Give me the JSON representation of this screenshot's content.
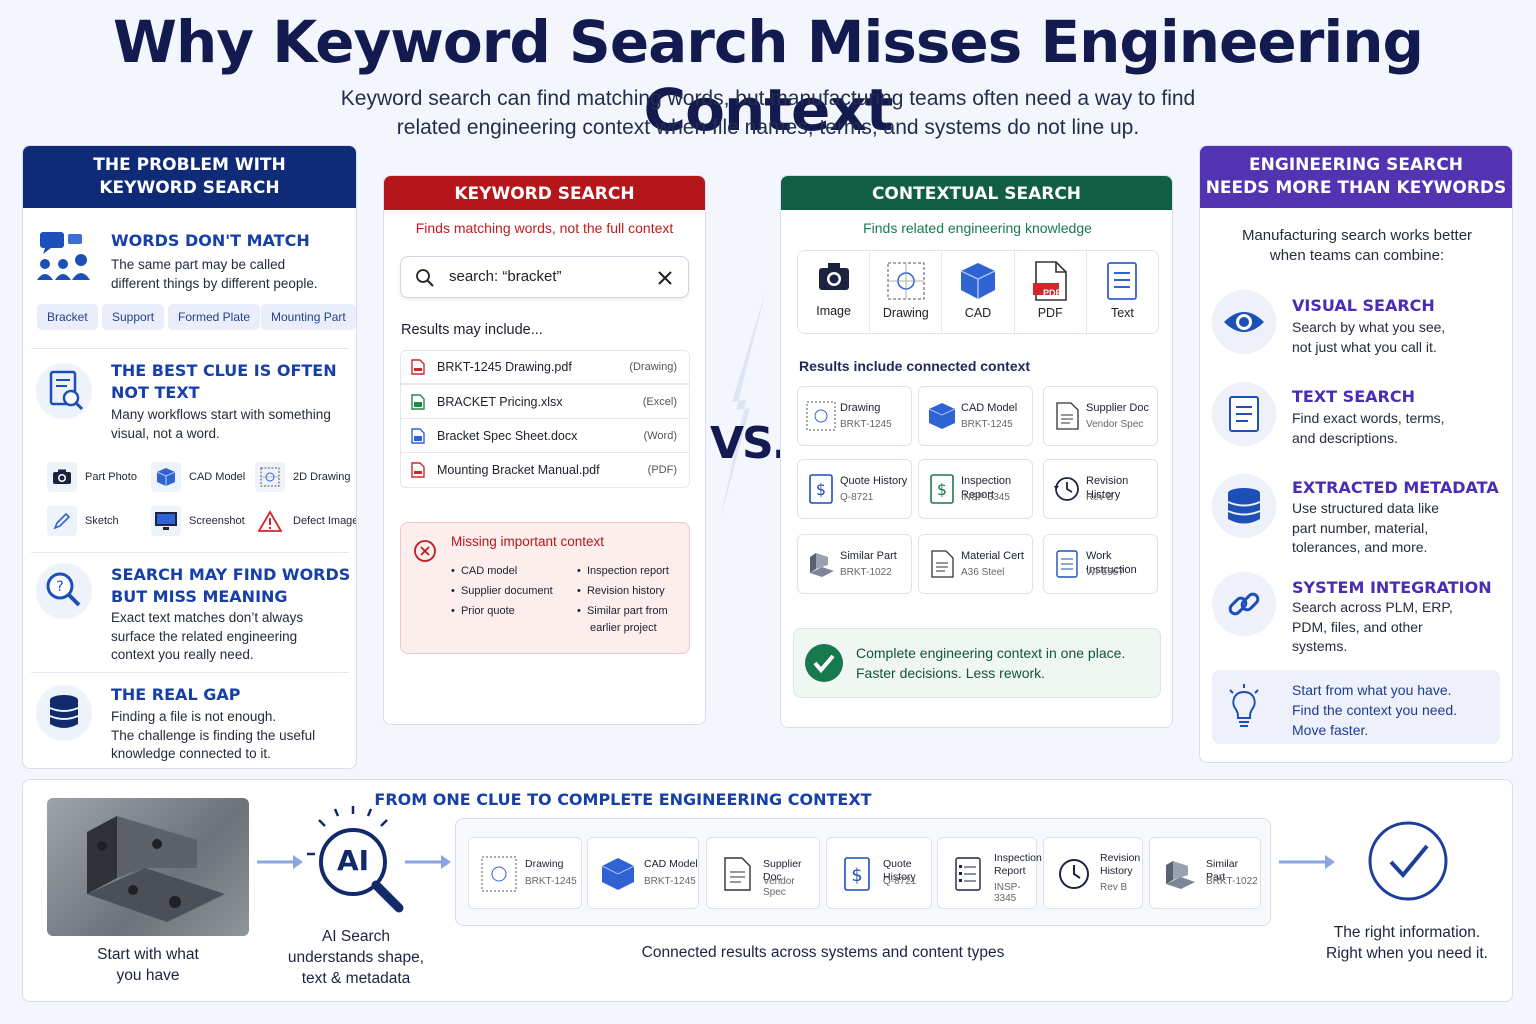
{
  "header": {
    "title": "Why Keyword Search Misses Engineering Context",
    "subtitle_line1": "Keyword search can find matching words, but manufacturing teams often need a way to find",
    "subtitle_line2": "related engineering context when file names, terms, and systems do not line up."
  },
  "left": {
    "head_line1": "THE PROBLEM WITH",
    "head_line2": "KEYWORD SEARCH",
    "s1": {
      "title": "WORDS DON'T MATCH",
      "text1": "The same part may be called",
      "text2": "different things by different people.",
      "tags": [
        "Bracket",
        "Support",
        "Formed Plate",
        "Mounting Part"
      ]
    },
    "s2": {
      "title1": "THE BEST CLUE IS OFTEN",
      "title2": "NOT TEXT",
      "text1": "Many workflows start with something",
      "text2": "visual, not a word.",
      "minis": [
        "Part Photo",
        "CAD Model",
        "2D Drawing",
        "Sketch",
        "Screenshot",
        "Defect Image"
      ]
    },
    "s3": {
      "title1": "SEARCH MAY FIND WORDS",
      "title2": "BUT MISS MEANING",
      "text1": "Exact text matches don’t always",
      "text2": "surface the related engineering",
      "text3": "context you really need."
    },
    "s4": {
      "title": "THE REAL GAP",
      "text1": "Finding a file is not enough.",
      "text2": "The challenge is finding the useful",
      "text3": "knowledge connected to it."
    }
  },
  "keyword": {
    "head": "KEYWORD SEARCH",
    "sub": "Finds matching words, not the full context",
    "search_value": "search: “bracket”",
    "results_label": "Results may include...",
    "files": [
      {
        "name": "BRKT-1245 Drawing.pdf",
        "type": "(Drawing)"
      },
      {
        "name": "BRACKET Pricing.xlsx",
        "type": "(Excel)"
      },
      {
        "name": "Bracket Spec Sheet.docx",
        "type": "(Word)"
      },
      {
        "name": "Mounting Bracket Manual.pdf",
        "type": "(PDF)"
      }
    ],
    "missing_title": "Missing important context",
    "missing_left": [
      "CAD model",
      "Supplier document",
      "Prior quote"
    ],
    "missing_right": [
      "Inspection report",
      "Revision history",
      "Similar part from",
      "earlier project"
    ]
  },
  "vs": "VS.",
  "contextual": {
    "head": "CONTEXTUAL SEARCH",
    "sub": "Finds related engineering knowledge",
    "types": [
      "Image",
      "Drawing",
      "CAD",
      "PDF",
      "Text"
    ],
    "pdf_badge": "PDF",
    "results_label": "Results include connected context",
    "cards": [
      {
        "name": "Drawing",
        "id": "BRKT-1245",
        "icon": "drawing-icon"
      },
      {
        "name": "CAD Model",
        "id": "BRKT-1245",
        "icon": "cad-icon"
      },
      {
        "name": "Supplier Doc",
        "id": "Vendor Spec",
        "icon": "document-icon"
      },
      {
        "name": "Quote History",
        "id": "Q-8721",
        "icon": "dollar-icon"
      },
      {
        "name": "Inspection Report",
        "id": "INSP-3345",
        "icon": "dollar-icon"
      },
      {
        "name": "Revision History",
        "id": "Rev B",
        "icon": "history-icon"
      },
      {
        "name": "Similar Part",
        "id": "BRKT-1022",
        "icon": "bracket-icon"
      },
      {
        "name": "Material Cert",
        "id": "A36 Steel",
        "icon": "document-icon"
      },
      {
        "name": "Work Instruction",
        "id": "WI-5567",
        "icon": "checklist-icon"
      }
    ],
    "ok_line1": "Complete engineering context in one place.",
    "ok_line2": "Faster decisions. Less rework."
  },
  "right": {
    "head_line1": "ENGINEERING SEARCH",
    "head_line2": "NEEDS MORE THAN KEYWORDS",
    "intro1": "Manufacturing search works better",
    "intro2": "when teams can combine:",
    "r1": {
      "title": "VISUAL SEARCH",
      "text1": "Search by what you see,",
      "text2": "not just what you call it."
    },
    "r2": {
      "title": "TEXT SEARCH",
      "text1": "Find exact words, terms,",
      "text2": "and descriptions."
    },
    "r3": {
      "title": "EXTRACTED METADATA",
      "text1": "Use structured data like",
      "text2": "part number, material,",
      "text3": "tolerances, and more."
    },
    "r4": {
      "title": "SYSTEM INTEGRATION",
      "text1": "Search across PLM, ERP,",
      "text2": "PDM, files, and other",
      "text3": "systems."
    },
    "tip1": "Start from what you have.",
    "tip2": "Find the context you need.",
    "tip3": "Move faster."
  },
  "bottom": {
    "title": "FROM ONE CLUE TO COMPLETE ENGINEERING CONTEXT",
    "start1": "Start with what",
    "start2": "you have",
    "ai_badge": "AI",
    "ai1": "AI Search",
    "ai2": "understands shape,",
    "ai3": "text & metadata",
    "cards": [
      {
        "name1": "Drawing",
        "name2": "",
        "id": "BRKT-1245"
      },
      {
        "name1": "CAD Model",
        "name2": "",
        "id": "BRKT-1245"
      },
      {
        "name1": "Supplier Doc",
        "name2": "",
        "id": "Vendor Spec"
      },
      {
        "name1": "Quote History",
        "name2": "",
        "id": "Q-8721"
      },
      {
        "name1": "Inspection",
        "name2": "Report",
        "id": "INSP-3345"
      },
      {
        "name1": "Revision",
        "name2": "History",
        "id": "Rev B"
      },
      {
        "name1": "Similar Part",
        "name2": "",
        "id": "BRKT-1022"
      }
    ],
    "connected": "Connected results across systems and content types",
    "right1": "The right information.",
    "right2": "Right when you need it."
  },
  "colors": {
    "navy": "#0f2b78",
    "red": "#b4161a",
    "green": "#125e45",
    "purple": "#5233b2",
    "accent_blue": "#1640a8"
  }
}
